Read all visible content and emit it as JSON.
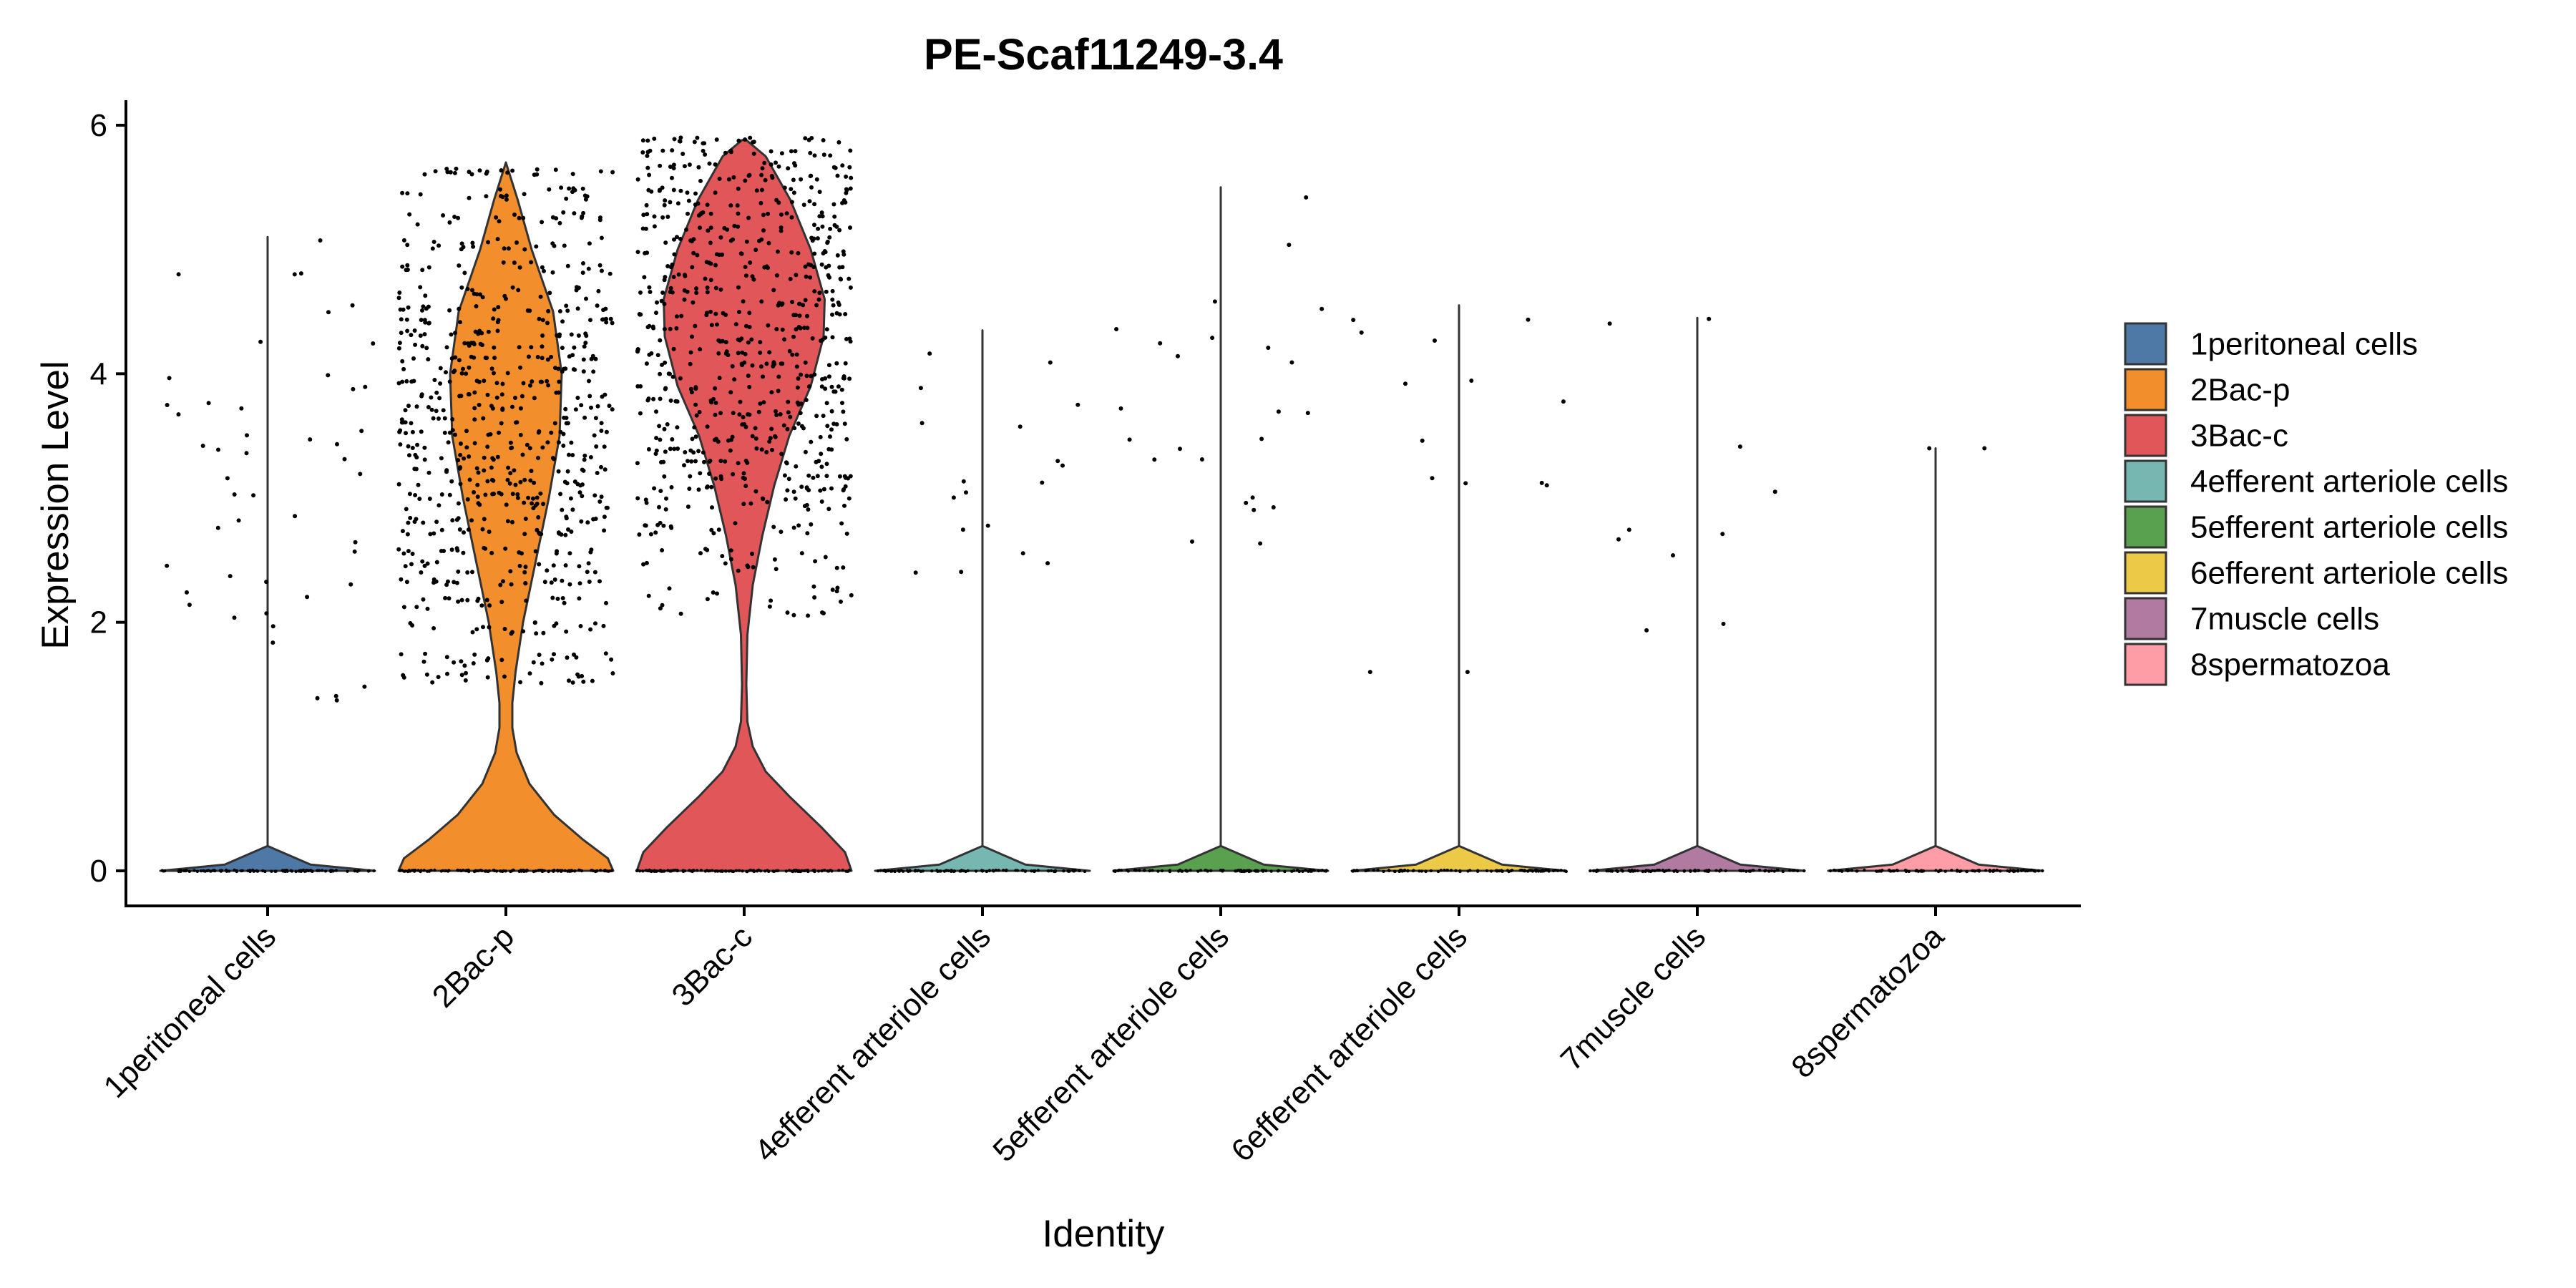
{
  "chart_data": {
    "type": "violin",
    "title": "PE-Scaf11249-3.4",
    "xlabel": "Identity",
    "ylabel": "Expression Level",
    "ylim": [
      0,
      6
    ],
    "yticks": [
      0,
      2,
      4,
      6
    ],
    "grid": false,
    "legend_position": "right",
    "categories": [
      "1peritoneal cells",
      "2Bac-p",
      "3Bac-c",
      "4efferent arteriole cells",
      "5efferent arteriole cells",
      "6efferent arteriole cells",
      "7muscle cells",
      "8spermatozoa"
    ],
    "colors": [
      "#4E79A7",
      "#F28E2B",
      "#E15759",
      "#76B7B2",
      "#59A14F",
      "#EDC948",
      "#B07AA1",
      "#FF9DA7"
    ],
    "series": [
      {
        "name": "1peritoneal cells",
        "max": 5.1,
        "density": [
          [
            0,
            1.0
          ],
          [
            0.05,
            0.4
          ],
          [
            0.2,
            0.0
          ],
          [
            5.1,
            0.0
          ]
        ]
      },
      {
        "name": "2Bac-p",
        "max": 5.7,
        "density": [
          [
            0,
            1.0
          ],
          [
            0.1,
            0.95
          ],
          [
            0.25,
            0.72
          ],
          [
            0.45,
            0.45
          ],
          [
            0.7,
            0.22
          ],
          [
            0.95,
            0.1
          ],
          [
            1.15,
            0.06
          ],
          [
            1.35,
            0.06
          ],
          [
            1.6,
            0.09
          ],
          [
            2.0,
            0.16
          ],
          [
            2.5,
            0.28
          ],
          [
            3.0,
            0.4
          ],
          [
            3.5,
            0.5
          ],
          [
            4.0,
            0.52
          ],
          [
            4.5,
            0.44
          ],
          [
            5.0,
            0.24
          ],
          [
            5.4,
            0.11
          ],
          [
            5.7,
            0.0
          ]
        ]
      },
      {
        "name": "3Bac-c",
        "max": 5.9,
        "density": [
          [
            0,
            1.0
          ],
          [
            0.15,
            0.94
          ],
          [
            0.35,
            0.72
          ],
          [
            0.6,
            0.42
          ],
          [
            0.8,
            0.2
          ],
          [
            1.0,
            0.08
          ],
          [
            1.2,
            0.03
          ],
          [
            1.5,
            0.02
          ],
          [
            1.9,
            0.03
          ],
          [
            2.3,
            0.08
          ],
          [
            2.7,
            0.17
          ],
          [
            3.1,
            0.28
          ],
          [
            3.5,
            0.42
          ],
          [
            3.9,
            0.62
          ],
          [
            4.3,
            0.74
          ],
          [
            4.6,
            0.75
          ],
          [
            5.0,
            0.62
          ],
          [
            5.4,
            0.43
          ],
          [
            5.75,
            0.2
          ],
          [
            5.88,
            0.02
          ]
        ]
      },
      {
        "name": "4efferent arteriole cells",
        "max": 4.35,
        "density": [
          [
            0,
            1.0
          ],
          [
            0.05,
            0.4
          ],
          [
            0.2,
            0.0
          ],
          [
            4.35,
            0.0
          ]
        ]
      },
      {
        "name": "5efferent arteriole cells",
        "max": 5.5,
        "density": [
          [
            0,
            1.0
          ],
          [
            0.05,
            0.4
          ],
          [
            0.2,
            0.0
          ],
          [
            5.5,
            0.0
          ]
        ]
      },
      {
        "name": "6efferent arteriole cells",
        "max": 4.55,
        "density": [
          [
            0,
            1.0
          ],
          [
            0.05,
            0.4
          ],
          [
            0.2,
            0.0
          ],
          [
            4.55,
            0.0
          ]
        ]
      },
      {
        "name": "7muscle cells",
        "max": 4.45,
        "density": [
          [
            0,
            1.0
          ],
          [
            0.05,
            0.4
          ],
          [
            0.2,
            0.0
          ],
          [
            4.45,
            0.0
          ]
        ]
      },
      {
        "name": "8spermatozoa",
        "max": 3.4,
        "density": [
          [
            0,
            1.0
          ],
          [
            0.05,
            0.4
          ],
          [
            0.2,
            0.0
          ],
          [
            3.4,
            0.0
          ]
        ]
      }
    ],
    "points": [
      [
        [
          1.3,
          1.65
        ],
        [
          1.75,
          2.05
        ],
        [
          2.1,
          2.25
        ],
        [
          2.3,
          2.5
        ],
        [
          2.75,
          2.9
        ],
        [
          3.0,
          3.05
        ],
        [
          3.1,
          3.2
        ],
        [
          3.3,
          3.4
        ],
        [
          3.5,
          3.6
        ],
        [
          3.7,
          3.75
        ],
        [
          3.85,
          4.0
        ],
        [
          4.1,
          4.3
        ],
        [
          4.45,
          4.6
        ],
        [
          4.8,
          4.8
        ],
        [
          4.8,
          5.1
        ],
        [
          1.3,
          1.55
        ],
        [
          2.2,
          2.4
        ],
        [
          2.6,
          2.8
        ],
        [
          3.2,
          3.55
        ],
        [
          3.35,
          3.45
        ],
        [
          3.65,
          3.8
        ],
        [
          2.0,
          2.15
        ],
        [
          2.35,
          2.7
        ],
        [
          3.9,
          4.25
        ]
      ],
      [
        [
          1.5,
          1.6
        ],
        [
          1.65,
          1.75
        ],
        [
          1.9,
          2.0
        ],
        [
          2.1,
          2.2
        ],
        [
          2.3,
          2.35
        ],
        [
          2.4,
          2.5
        ],
        [
          2.55,
          2.6
        ],
        [
          2.7,
          2.75
        ],
        [
          2.8,
          2.85
        ],
        [
          2.9,
          3.0
        ],
        [
          3.0,
          3.05
        ],
        [
          3.1,
          3.15
        ],
        [
          3.2,
          3.25
        ],
        [
          3.3,
          3.35
        ],
        [
          3.4,
          3.45
        ],
        [
          3.5,
          3.55
        ],
        [
          3.6,
          3.65
        ],
        [
          3.7,
          3.75
        ],
        [
          3.8,
          3.85
        ],
        [
          3.9,
          3.95
        ],
        [
          4.0,
          4.05
        ],
        [
          4.1,
          4.15
        ],
        [
          4.2,
          4.25
        ],
        [
          4.3,
          4.35
        ],
        [
          4.4,
          4.45
        ],
        [
          4.5,
          4.55
        ],
        [
          4.6,
          4.7
        ],
        [
          4.8,
          4.9
        ],
        [
          5.0,
          5.1
        ],
        [
          5.2,
          5.3
        ],
        [
          5.4,
          5.5
        ],
        [
          5.6,
          5.65
        ]
      ],
      [
        [
          2.05,
          2.3
        ],
        [
          2.4,
          2.6
        ],
        [
          2.7,
          2.8
        ],
        [
          2.9,
          3.0
        ],
        [
          3.05,
          3.1
        ],
        [
          3.15,
          3.2
        ],
        [
          3.25,
          3.3
        ],
        [
          3.35,
          3.4
        ],
        [
          3.45,
          3.5
        ],
        [
          3.55,
          3.6
        ],
        [
          3.65,
          3.7
        ],
        [
          3.75,
          3.8
        ],
        [
          3.85,
          3.9
        ],
        [
          3.95,
          4.0
        ],
        [
          4.05,
          4.1
        ],
        [
          4.15,
          4.2
        ],
        [
          4.25,
          4.3
        ],
        [
          4.35,
          4.4
        ],
        [
          4.45,
          4.5
        ],
        [
          4.55,
          4.6
        ],
        [
          4.65,
          4.7
        ],
        [
          4.75,
          4.8
        ],
        [
          4.85,
          4.9
        ],
        [
          4.95,
          5.0
        ],
        [
          5.05,
          5.1
        ],
        [
          5.15,
          5.2
        ],
        [
          5.25,
          5.3
        ],
        [
          5.35,
          5.4
        ],
        [
          5.45,
          5.5
        ],
        [
          5.55,
          5.6
        ],
        [
          5.65,
          5.7
        ],
        [
          5.75,
          5.8
        ],
        [
          5.85,
          5.9
        ]
      ],
      [
        [
          2.4,
          2.6
        ],
        [
          2.7,
          2.9
        ],
        [
          3.0,
          3.2
        ],
        [
          3.25,
          3.45
        ],
        [
          3.5,
          3.65
        ],
        [
          3.7,
          3.95
        ],
        [
          4.05,
          4.35
        ],
        [
          2.35,
          2.75
        ],
        [
          3.1,
          3.55
        ]
      ],
      [
        [
          2.6,
          2.8
        ],
        [
          2.9,
          3.2
        ],
        [
          3.25,
          3.4
        ],
        [
          3.45,
          3.6
        ],
        [
          3.65,
          3.9
        ],
        [
          3.95,
          4.15
        ],
        [
          4.2,
          4.4
        ],
        [
          4.5,
          4.8
        ],
        [
          4.95,
          5.5
        ],
        [
          2.7,
          3.1
        ],
        [
          3.3,
          3.75
        ],
        [
          4.0,
          4.55
        ]
      ],
      [
        [
          1.6,
          1.6
        ],
        [
          3.1,
          3.15
        ],
        [
          3.3,
          3.8
        ],
        [
          3.85,
          3.95
        ],
        [
          4.2,
          4.55
        ],
        [
          3.1,
          3.25
        ],
        [
          4.4,
          4.45
        ]
      ],
      [
        [
          1.9,
          2.1
        ],
        [
          2.55,
          2.85
        ],
        [
          2.85,
          3.45
        ],
        [
          4.4,
          4.45
        ],
        [
          2.5,
          2.9
        ]
      ],
      [
        [
          3.4,
          3.4
        ]
      ]
    ]
  }
}
